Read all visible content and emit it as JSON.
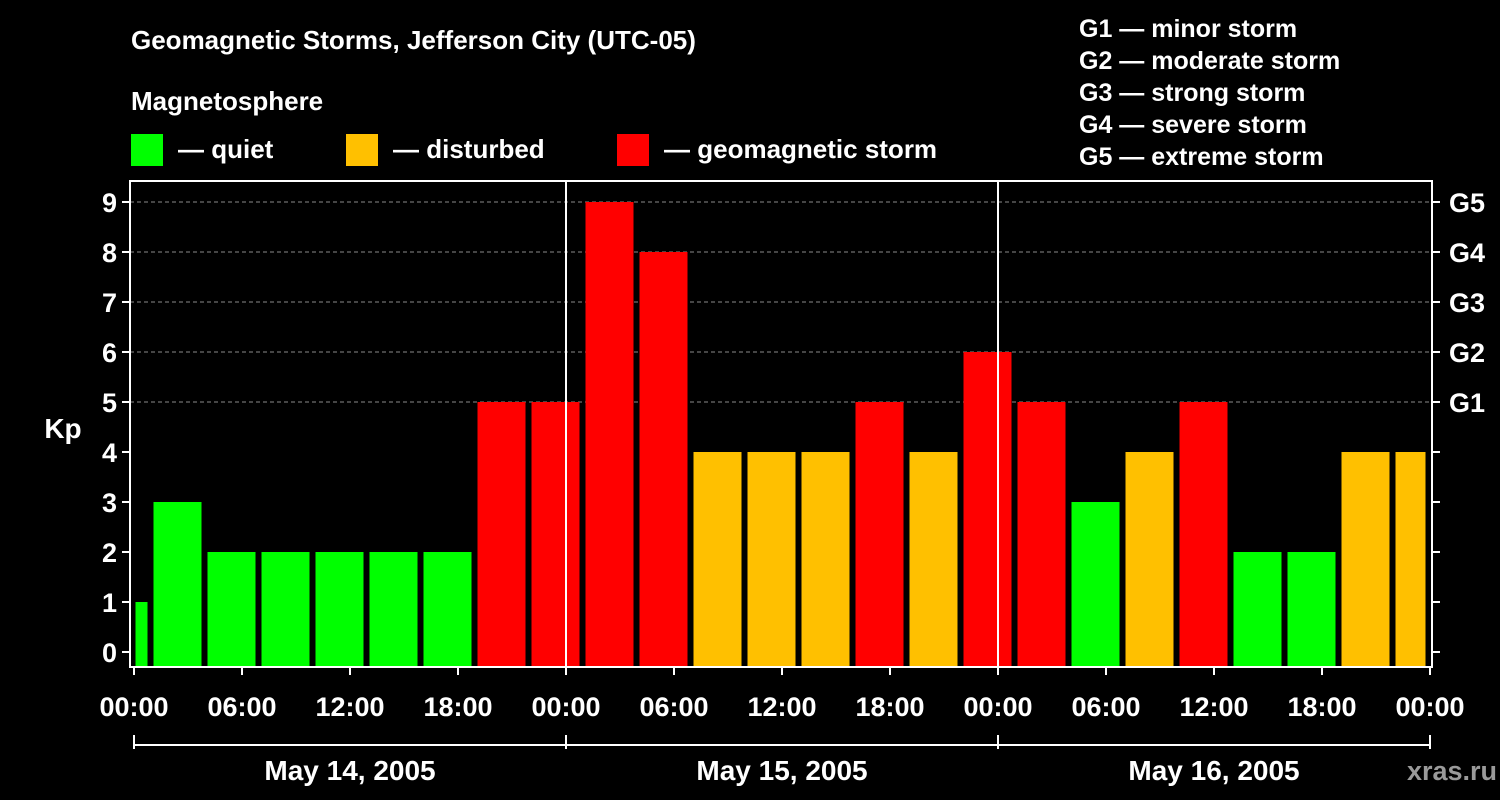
{
  "title": "Geomagnetic Storms, Jefferson City (UTC-05)",
  "legend": {
    "heading": "Magnetosphere",
    "items": [
      {
        "label": "— quiet",
        "color": "#00ff00"
      },
      {
        "label": "— disturbed",
        "color": "#ffc000"
      },
      {
        "label": "— geomagnetic storm",
        "color": "#ff0000"
      }
    ]
  },
  "storm_scale": [
    "G1 — minor storm",
    "G2 — moderate storm",
    "G3 — strong storm",
    "G4 — severe storm",
    "G5 — extreme storm"
  ],
  "watermark": "xras.ru",
  "chart_data": {
    "type": "bar",
    "ylabel": "Kp",
    "ylim": [
      0,
      9
    ],
    "y_ticks": [
      "0",
      "1",
      "2",
      "3",
      "4",
      "5",
      "6",
      "7",
      "8",
      "9"
    ],
    "right_axis_labels": [
      {
        "kp": 5,
        "label": "G1"
      },
      {
        "kp": 6,
        "label": "G2"
      },
      {
        "kp": 7,
        "label": "G3"
      },
      {
        "kp": 8,
        "label": "G4"
      },
      {
        "kp": 9,
        "label": "G5"
      }
    ],
    "x_tick_labels": [
      "00:00",
      "06:00",
      "12:00",
      "18:00",
      "00:00",
      "06:00",
      "12:00",
      "18:00",
      "00:00",
      "06:00",
      "12:00",
      "18:00",
      "00:00"
    ],
    "days": [
      "May 14, 2005",
      "May 15, 2005",
      "May 16, 2005"
    ],
    "interval_hours": 3,
    "bars": [
      {
        "start_hour": 0,
        "end_hour": 1,
        "kp": 1,
        "level": "quiet"
      },
      {
        "start_hour": 1,
        "end_hour": 4,
        "kp": 3,
        "level": "quiet"
      },
      {
        "start_hour": 4,
        "end_hour": 7,
        "kp": 2,
        "level": "quiet"
      },
      {
        "start_hour": 7,
        "end_hour": 10,
        "kp": 2,
        "level": "quiet"
      },
      {
        "start_hour": 10,
        "end_hour": 13,
        "kp": 2,
        "level": "quiet"
      },
      {
        "start_hour": 13,
        "end_hour": 16,
        "kp": 2,
        "level": "quiet"
      },
      {
        "start_hour": 16,
        "end_hour": 19,
        "kp": 2,
        "level": "quiet"
      },
      {
        "start_hour": 19,
        "end_hour": 22,
        "kp": 5,
        "level": "storm"
      },
      {
        "start_hour": 22,
        "end_hour": 25,
        "kp": 5,
        "level": "storm"
      },
      {
        "start_hour": 25,
        "end_hour": 28,
        "kp": 9,
        "level": "storm"
      },
      {
        "start_hour": 28,
        "end_hour": 31,
        "kp": 8,
        "level": "storm"
      },
      {
        "start_hour": 31,
        "end_hour": 34,
        "kp": 4,
        "level": "disturbed"
      },
      {
        "start_hour": 34,
        "end_hour": 37,
        "kp": 4,
        "level": "disturbed"
      },
      {
        "start_hour": 37,
        "end_hour": 40,
        "kp": 4,
        "level": "disturbed"
      },
      {
        "start_hour": 40,
        "end_hour": 43,
        "kp": 5,
        "level": "storm"
      },
      {
        "start_hour": 43,
        "end_hour": 46,
        "kp": 4,
        "level": "disturbed"
      },
      {
        "start_hour": 46,
        "end_hour": 49,
        "kp": 6,
        "level": "storm"
      },
      {
        "start_hour": 49,
        "end_hour": 52,
        "kp": 5,
        "level": "storm"
      },
      {
        "start_hour": 52,
        "end_hour": 55,
        "kp": 3,
        "level": "quiet"
      },
      {
        "start_hour": 55,
        "end_hour": 58,
        "kp": 4,
        "level": "disturbed"
      },
      {
        "start_hour": 58,
        "end_hour": 61,
        "kp": 5,
        "level": "storm"
      },
      {
        "start_hour": 61,
        "end_hour": 64,
        "kp": 2,
        "level": "quiet"
      },
      {
        "start_hour": 64,
        "end_hour": 67,
        "kp": 2,
        "level": "quiet"
      },
      {
        "start_hour": 67,
        "end_hour": 70,
        "kp": 4,
        "level": "disturbed"
      },
      {
        "start_hour": 70,
        "end_hour": 72,
        "kp": 4,
        "level": "disturbed"
      }
    ],
    "colors": {
      "quiet": "#00ff00",
      "disturbed": "#ffc000",
      "storm": "#ff0000"
    },
    "grid": "dashed horizontal at Kp 9,8,7,6,5"
  }
}
